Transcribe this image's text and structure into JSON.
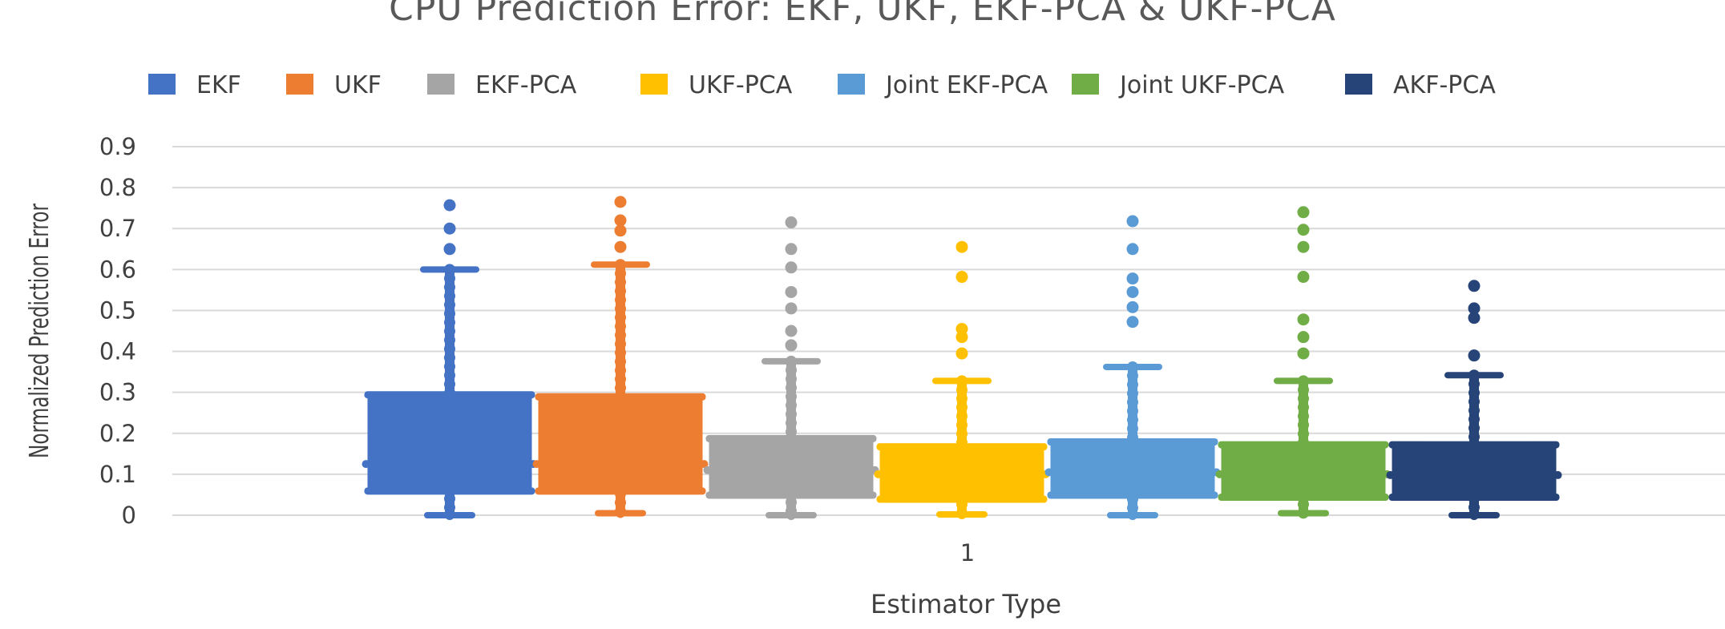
{
  "chart_data": {
    "type": "box",
    "title": "CPU Prediction Error: EKF, UKF, EKF-PCA & UKF-PCA",
    "xlabel": "Estimator Type",
    "ylabel": "Normalized Prediction Error",
    "categories": [
      "1"
    ],
    "ylim": [
      0,
      0.9
    ],
    "y_ticks": [
      "0",
      "0.1",
      "0.2",
      "0.3",
      "0.4",
      "0.5",
      "0.6",
      "0.7",
      "0.8",
      "0.9"
    ],
    "grid": true,
    "legend_position": "top",
    "series": [
      {
        "name": "EKF",
        "color": "#4472C4",
        "min": 0.0,
        "q1": 0.06,
        "median": 0.125,
        "q3": 0.295,
        "max": 0.6,
        "outliers": [
          0.65,
          0.7,
          0.757
        ]
      },
      {
        "name": "UKF",
        "color": "#ED7D31",
        "min": 0.005,
        "q1": 0.06,
        "median": 0.125,
        "q3": 0.29,
        "max": 0.612,
        "outliers": [
          0.655,
          0.695,
          0.72,
          0.765
        ]
      },
      {
        "name": "EKF-PCA",
        "color": "#A5A5A5",
        "min": 0.0,
        "q1": 0.05,
        "median": 0.11,
        "q3": 0.188,
        "max": 0.376,
        "outliers": [
          0.415,
          0.45,
          0.505,
          0.545,
          0.605,
          0.65,
          0.715
        ]
      },
      {
        "name": "UKF-PCA",
        "color": "#FFC000",
        "min": 0.002,
        "q1": 0.04,
        "median": 0.1,
        "q3": 0.168,
        "max": 0.328,
        "outliers": [
          0.395,
          0.435,
          0.455,
          0.582,
          0.655
        ]
      },
      {
        "name": "Joint EKF-PCA",
        "color": "#5B9BD5",
        "min": 0.0,
        "q1": 0.05,
        "median": 0.105,
        "q3": 0.18,
        "max": 0.362,
        "outliers": [
          0.472,
          0.508,
          0.545,
          0.578,
          0.65,
          0.718
        ]
      },
      {
        "name": "Joint UKF-PCA",
        "color": "#70AD47",
        "min": 0.005,
        "q1": 0.045,
        "median": 0.1,
        "q3": 0.173,
        "max": 0.328,
        "outliers": [
          0.395,
          0.435,
          0.478,
          0.582,
          0.655,
          0.697,
          0.74
        ]
      },
      {
        "name": "AKF-PCA",
        "color": "#264478",
        "min": 0.0,
        "q1": 0.045,
        "median": 0.098,
        "q3": 0.173,
        "max": 0.342,
        "outliers": [
          0.39,
          0.482,
          0.505,
          0.56
        ]
      }
    ]
  }
}
